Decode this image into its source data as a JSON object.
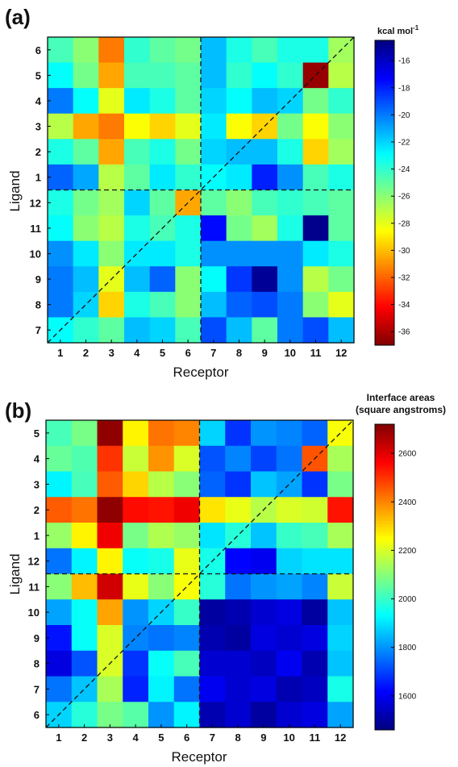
{
  "chart_data": [
    {
      "type": "heatmap",
      "panel_label": "(a)",
      "xlabel": "Receptor",
      "ylabel": "Ligand",
      "x_categories": [
        "1",
        "2",
        "3",
        "4",
        "5",
        "6",
        "7",
        "8",
        "9",
        "10",
        "11",
        "12"
      ],
      "y_categories_top_to_bottom": [
        "6",
        "5",
        "4",
        "3",
        "2",
        "1",
        "12",
        "11",
        "10",
        "9",
        "8",
        "7"
      ],
      "colorbar": {
        "title": "kcal mol",
        "title_superscript": "-1",
        "range": [
          -37,
          -14.5
        ],
        "ticks": [
          "-16",
          "-18",
          "-20",
          "-22",
          "-24",
          "-26",
          "-28",
          "-30",
          "-32",
          "-34",
          "-36"
        ],
        "tick_values": [
          -16,
          -18,
          -20,
          -22,
          -24,
          -26,
          -28,
          -30,
          -32,
          -34,
          -36
        ]
      },
      "values": [
        [
          -24.5,
          -26.0,
          -31.5,
          -24.0,
          -25.0,
          -25.5,
          -21.5,
          -23.5,
          -24.5,
          -23.5,
          -23.5,
          -26.5
        ],
        [
          -23.0,
          -25.5,
          -30.5,
          -24.5,
          -24.5,
          -25.0,
          -21.5,
          -24.0,
          -23.0,
          -24.0,
          -36.5,
          -27.0
        ],
        [
          -20.0,
          -23.0,
          -28.0,
          -22.5,
          -23.5,
          -25.0,
          -22.0,
          -23.0,
          -21.5,
          -22.0,
          -25.5,
          -24.0
        ],
        [
          -27.0,
          -30.5,
          -31.5,
          -28.5,
          -29.5,
          -28.0,
          -22.5,
          -28.5,
          -29.5,
          -25.5,
          -28.5,
          -26.0
        ],
        [
          -23.5,
          -25.0,
          -30.5,
          -24.5,
          -23.5,
          -25.5,
          -22.0,
          -21.5,
          -21.5,
          -23.5,
          -29.5,
          -26.5
        ],
        [
          -19.5,
          -21.0,
          -27.0,
          -25.0,
          -22.5,
          -24.0,
          -23.0,
          -22.5,
          -18.0,
          -20.5,
          -24.5,
          -23.5
        ],
        [
          -23.5,
          -25.5,
          -26.5,
          -22.0,
          -25.0,
          -30.5,
          -25.0,
          -26.0,
          -24.5,
          -24.0,
          -24.5,
          -25.0
        ],
        [
          -23.0,
          -26.0,
          -27.0,
          -23.5,
          -24.5,
          -23.5,
          -17.5,
          -25.5,
          -26.5,
          -23.5,
          -14.8,
          -25.0
        ],
        [
          -20.5,
          -22.5,
          -26.0,
          -22.5,
          -22.5,
          -23.5,
          -20.5,
          -20.5,
          -20.5,
          -20.5,
          -22.5,
          -23.5
        ],
        [
          -20.0,
          -21.5,
          -28.0,
          -21.5,
          -19.5,
          -26.0,
          -23.0,
          -18.5,
          -15.0,
          -20.5,
          -27.0,
          -25.5
        ],
        [
          -20.0,
          -22.0,
          -29.5,
          -23.5,
          -24.5,
          -26.0,
          -21.5,
          -19.5,
          -19.0,
          -20.0,
          -26.0,
          -28.0
        ],
        [
          -23.0,
          -24.0,
          -25.0,
          -21.5,
          -22.0,
          -24.5,
          -19.0,
          -21.5,
          -25.0,
          -20.0,
          -19.0,
          -21.5
        ]
      ]
    },
    {
      "type": "heatmap",
      "panel_label": "(b)",
      "xlabel": "Receptor",
      "ylabel": "Ligand",
      "x_categories": [
        "1",
        "2",
        "3",
        "4",
        "5",
        "6",
        "7",
        "8",
        "9",
        "10",
        "11",
        "12"
      ],
      "y_categories_top_to_bottom": [
        "5",
        "4",
        "3",
        "2",
        "1",
        "12",
        "11",
        "10",
        "9",
        "8",
        "7",
        "6"
      ],
      "colorbar": {
        "title": "Interface areas",
        "subtitle": "(square angstroms)",
        "range": [
          1460,
          2720
        ],
        "ticks": [
          "2600",
          "2400",
          "2200",
          "2000",
          "1800",
          "1600"
        ],
        "tick_values": [
          2600,
          2400,
          2200,
          2000,
          1800,
          1600
        ]
      },
      "values": [
        [
          2020,
          2080,
          2700,
          2260,
          2420,
          2400,
          1880,
          1680,
          1800,
          1780,
          1740,
          2240
        ],
        [
          2060,
          2030,
          2500,
          2180,
          2380,
          2200,
          1720,
          1780,
          1700,
          1760,
          2460,
          2140
        ],
        [
          1920,
          2020,
          2450,
          2300,
          2160,
          2100,
          1740,
          1680,
          1860,
          1820,
          1680,
          2080
        ],
        [
          2450,
          2420,
          2700,
          2550,
          2540,
          2580,
          2280,
          2220,
          2160,
          2200,
          2190,
          2540
        ],
        [
          2120,
          2260,
          2580,
          2080,
          2150,
          2120,
          1900,
          1980,
          1860,
          2000,
          2020,
          2140
        ],
        [
          1760,
          1920,
          2260,
          1940,
          1960,
          2220,
          1960,
          1620,
          1600,
          1880,
          1900,
          1900
        ],
        [
          2100,
          2330,
          2620,
          2220,
          2100,
          2240,
          1980,
          1760,
          1800,
          1820,
          1780,
          2180
        ],
        [
          1820,
          1940,
          2360,
          1800,
          1880,
          2000,
          1500,
          1520,
          1560,
          1580,
          1500,
          1860
        ],
        [
          1640,
          1940,
          2200,
          1780,
          1760,
          1780,
          1520,
          1500,
          1580,
          1560,
          1580,
          1880
        ],
        [
          1580,
          1720,
          2200,
          1680,
          1940,
          2020,
          1560,
          1560,
          1540,
          1600,
          1520,
          1860
        ],
        [
          1760,
          1860,
          2140,
          1660,
          1920,
          1760,
          1600,
          1560,
          1580,
          1520,
          1540,
          1960
        ],
        [
          1880,
          1980,
          2080,
          2040,
          1800,
          1920,
          1520,
          1560,
          1500,
          1560,
          1580,
          1820
        ]
      ]
    }
  ]
}
